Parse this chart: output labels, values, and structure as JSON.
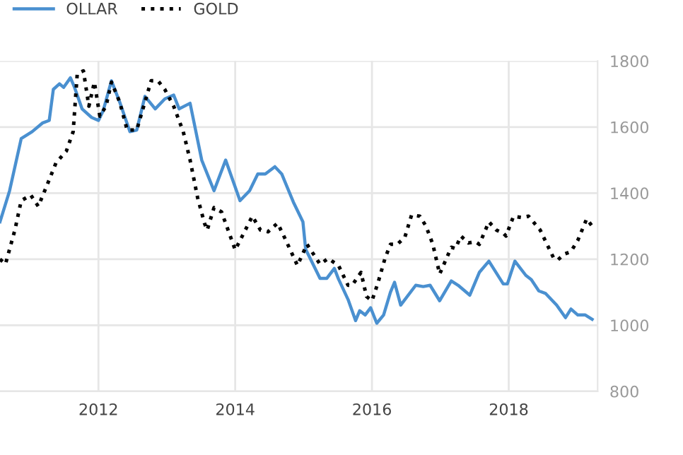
{
  "chart_data": {
    "type": "line",
    "xlim": [
      2010.56,
      2019.3
    ],
    "xticks": [
      2012,
      2014,
      2016,
      2018
    ],
    "ylim": [
      800,
      1800
    ],
    "yticks": [
      800,
      1000,
      1200,
      1400,
      1600,
      1800
    ],
    "grid": true,
    "legend": "top left",
    "marker": "none",
    "series": [
      {
        "name": "OLLAR",
        "color": "#4a90d0",
        "line_style": "solid",
        "x": [
          2010.56,
          2010.7,
          2010.87,
          2011.03,
          2011.18,
          2011.28,
          2011.34,
          2011.43,
          2011.49,
          2011.59,
          2011.65,
          2011.76,
          2011.9,
          2012.0,
          2012.07,
          2012.19,
          2012.31,
          2012.46,
          2012.56,
          2012.68,
          2012.83,
          2012.97,
          2013.1,
          2013.18,
          2013.34,
          2013.51,
          2013.69,
          2013.86,
          2014.07,
          2014.21,
          2014.33,
          2014.44,
          2014.58,
          2014.68,
          2014.85,
          2014.99,
          2015.03,
          2015.24,
          2015.34,
          2015.45,
          2015.51,
          2015.65,
          2015.76,
          2015.82,
          2015.9,
          2015.98,
          2016.07,
          2016.17,
          2016.27,
          2016.33,
          2016.42,
          2016.64,
          2016.75,
          2016.85,
          2016.99,
          2017.16,
          2017.26,
          2017.43,
          2017.57,
          2017.71,
          2017.92,
          2017.98,
          2018.09,
          2018.25,
          2018.33,
          2018.44,
          2018.54,
          2018.7,
          2018.83,
          2018.91,
          2019.01,
          2019.12,
          2019.22
        ],
        "values": [
          1313,
          1407,
          1565,
          1586,
          1612,
          1620,
          1714,
          1731,
          1720,
          1749,
          1720,
          1655,
          1629,
          1620,
          1650,
          1740,
          1676,
          1586,
          1591,
          1693,
          1655,
          1685,
          1697,
          1655,
          1672,
          1500,
          1407,
          1500,
          1377,
          1407,
          1458,
          1458,
          1480,
          1458,
          1373,
          1313,
          1230,
          1142,
          1142,
          1172,
          1140,
          1078,
          1014,
          1044,
          1031,
          1053,
          1006,
          1031,
          1100,
          1130,
          1061,
          1121,
          1117,
          1121,
          1074,
          1134,
          1121,
          1091,
          1160,
          1194,
          1125,
          1125,
          1194,
          1151,
          1138,
          1104,
          1096,
          1061,
          1023,
          1049,
          1031,
          1031,
          1018
        ]
      },
      {
        "name": "GOLD",
        "color": "#000000",
        "line_style": "dotted",
        "x": [
          2010.56,
          2010.64,
          2010.78,
          2010.87,
          2011.01,
          2011.12,
          2011.24,
          2011.38,
          2011.53,
          2011.63,
          2011.69,
          2011.78,
          2011.86,
          2011.94,
          2012.02,
          2012.11,
          2012.19,
          2012.31,
          2012.42,
          2012.56,
          2012.77,
          2012.87,
          2012.97,
          2013.1,
          2013.24,
          2013.34,
          2013.45,
          2013.55,
          2013.59,
          2013.69,
          2013.8,
          2014.0,
          2014.25,
          2014.37,
          2014.48,
          2014.62,
          2014.72,
          2014.91,
          2015.05,
          2015.24,
          2015.36,
          2015.51,
          2015.65,
          2015.71,
          2015.84,
          2015.92,
          2016.0,
          2016.09,
          2016.19,
          2016.27,
          2016.37,
          2016.48,
          2016.58,
          2016.7,
          2016.79,
          2016.89,
          2016.99,
          2017.16,
          2017.22,
          2017.3,
          2017.41,
          2017.51,
          2017.57,
          2017.71,
          2017.82,
          2017.92,
          2017.96,
          2018.07,
          2018.19,
          2018.29,
          2018.46,
          2018.66,
          2018.72,
          2018.81,
          2018.91,
          2019.01,
          2019.14,
          2019.22
        ],
        "values": [
          1200,
          1185,
          1290,
          1377,
          1394,
          1360,
          1420,
          1492,
          1527,
          1586,
          1762,
          1770,
          1663,
          1736,
          1633,
          1663,
          1736,
          1676,
          1591,
          1591,
          1740,
          1740,
          1714,
          1663,
          1586,
          1500,
          1386,
          1309,
          1288,
          1356,
          1343,
          1228,
          1330,
          1288,
          1283,
          1309,
          1266,
          1181,
          1245,
          1185,
          1202,
          1181,
          1121,
          1121,
          1160,
          1087,
          1074,
          1130,
          1202,
          1245,
          1245,
          1266,
          1334,
          1330,
          1300,
          1245,
          1155,
          1236,
          1232,
          1270,
          1249,
          1253,
          1245,
          1313,
          1288,
          1279,
          1270,
          1330,
          1326,
          1330,
          1288,
          1202,
          1198,
          1215,
          1223,
          1257,
          1322,
          1300
        ]
      }
    ]
  }
}
